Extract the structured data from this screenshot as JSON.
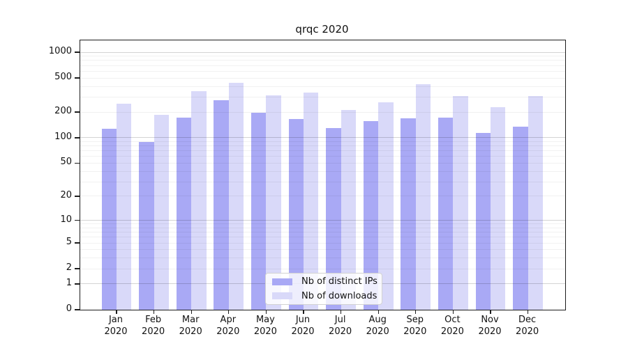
{
  "title": "qrqc 2020",
  "chart_data": {
    "type": "bar",
    "categories": [
      {
        "month": "Jan",
        "year": "2020"
      },
      {
        "month": "Feb",
        "year": "2020"
      },
      {
        "month": "Mar",
        "year": "2020"
      },
      {
        "month": "Apr",
        "year": "2020"
      },
      {
        "month": "May",
        "year": "2020"
      },
      {
        "month": "Jun",
        "year": "2020"
      },
      {
        "month": "Jul",
        "year": "2020"
      },
      {
        "month": "Aug",
        "year": "2020"
      },
      {
        "month": "Sep",
        "year": "2020"
      },
      {
        "month": "Oct",
        "year": "2020"
      },
      {
        "month": "Nov",
        "year": "2020"
      },
      {
        "month": "Dec",
        "year": "2020"
      }
    ],
    "series": [
      {
        "name": "Nb of distinct IPs",
        "color": "#a9a9f5",
        "values": [
          127,
          89,
          171,
          274,
          198,
          166,
          129,
          156,
          168,
          171,
          114,
          135
        ]
      },
      {
        "name": "Nb of downloads",
        "color": "#d9d9f9",
        "values": [
          252,
          185,
          351,
          442,
          314,
          340,
          211,
          262,
          423,
          310,
          229,
          310
        ]
      }
    ],
    "yticks": [
      0,
      1,
      2,
      5,
      10,
      20,
      50,
      100,
      200,
      500,
      1000
    ],
    "xlabel": "",
    "ylabel": "",
    "scale": "log1p",
    "ylim": [
      0,
      1400
    ],
    "grid": true,
    "legend_position": "lower center"
  },
  "colors": {
    "background": "#ffffff",
    "frame": "#1c1c1c",
    "major_grid": "#d6d6d6",
    "minor_grid": "#f1f1f1",
    "bar_ips": "#a9a9f5",
    "bar_downloads": "#d9d9f9"
  }
}
